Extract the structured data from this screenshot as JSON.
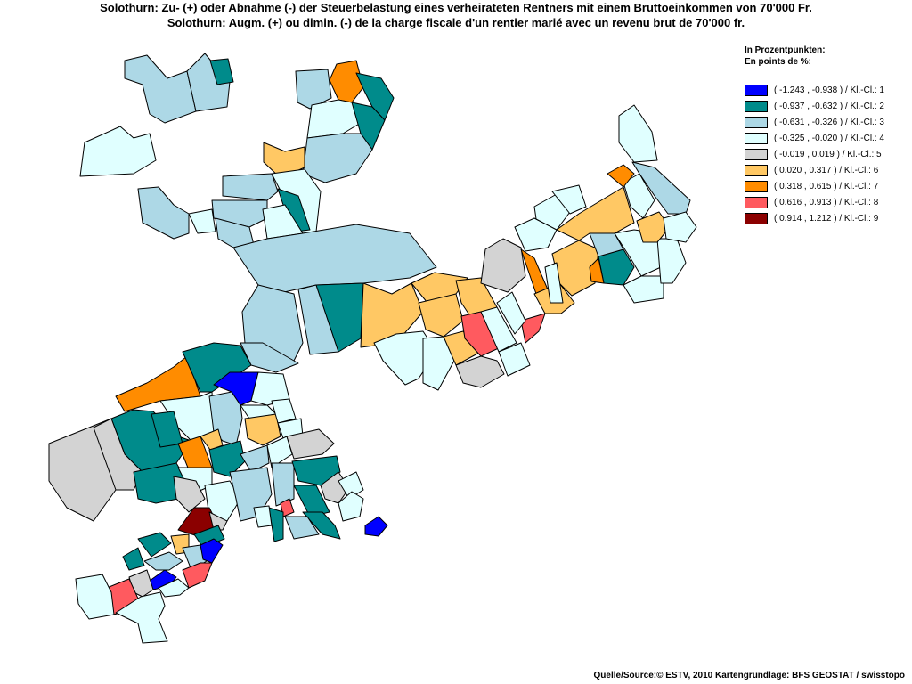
{
  "title": {
    "line1": "Solothurn: Zu- (+) oder Abnahme (-) der Steuerbelastung eines verheirateten Rentners mit einem Bruttoeinkommen von 70'000 Fr.",
    "line2": "Solothurn: Augm. (+) ou dimin. (-) de la charge fiscale d'un rentier marié avec un revenu brut de 70'000 fr."
  },
  "legend": {
    "heading_de": "In Prozentpunkten:",
    "heading_fr": "En points de %:",
    "classes": [
      {
        "label": "( -1.243 , -0.938 ) / Kl.-Cl.: 1",
        "color": "#0000ff"
      },
      {
        "label": "( -0.937 , -0.632 ) / Kl.-Cl.: 2",
        "color": "#008b8b"
      },
      {
        "label": "( -0.631 , -0.326 ) / Kl.-Cl.: 3",
        "color": "#add8e6"
      },
      {
        "label": "( -0.325 , -0.020 ) / Kl.-Cl.: 4",
        "color": "#e0ffff"
      },
      {
        "label": "( -0.019 , 0.019 ) / Kl.-Cl.: 5",
        "color": "#d3d3d3"
      },
      {
        "label": "( 0.020 , 0.317 ) / Kl.-Cl.: 6",
        "color": "#ffc864"
      },
      {
        "label": "( 0.318 , 0.615 ) / Kl.-Cl.: 7",
        "color": "#ff8c00"
      },
      {
        "label": "( 0.616 , 0.913 ) / Kl.-Cl.: 8",
        "color": "#ff5a5f"
      },
      {
        "label": "( 0.914 , 1.212 ) / Kl.-Cl.: 9",
        "color": "#8b0000"
      }
    ]
  },
  "source": "Quelle/Source:© ESTV, 2010 Kartengrundlage: BFS GEOSTAT / swisstopo"
}
